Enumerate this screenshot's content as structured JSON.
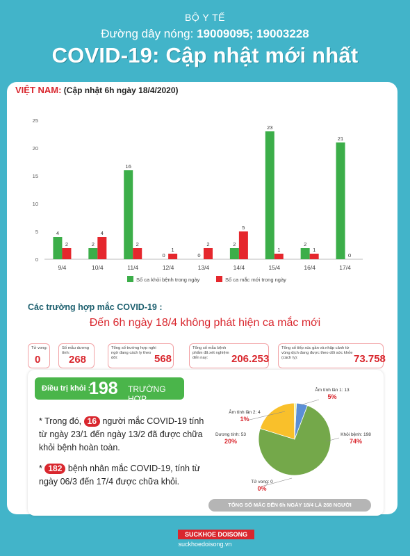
{
  "header": {
    "ministry": "BỘ Y TẾ",
    "hotline_label": "Đường dây nóng: ",
    "hotline_numbers": "19009095; 19003228",
    "title": "COVID-19: Cập nhật mới nhất"
  },
  "vn_header": {
    "country": "VIỆT NAM:",
    "update": "(Cập nhật 6h ngày 18/4/2020)"
  },
  "chart_data": {
    "type": "bar",
    "categories": [
      "9/4",
      "10/4",
      "11/4",
      "12/4",
      "13/4",
      "14/4",
      "15/4",
      "16/4",
      "17/4"
    ],
    "series": [
      {
        "name": "Số ca khỏi bệnh trong ngày",
        "color": "#3cae49",
        "values": [
          4,
          2,
          16,
          0,
          0,
          2,
          23,
          2,
          21
        ]
      },
      {
        "name": "Số ca mắc mới trong ngày",
        "color": "#e5272d",
        "values": [
          2,
          4,
          2,
          1,
          2,
          5,
          1,
          1,
          0
        ]
      }
    ],
    "yticks": [
      0,
      5,
      10,
      15,
      20,
      25
    ],
    "ylim": [
      0,
      25
    ],
    "legend": "bottom"
  },
  "cases": {
    "title": "Các trường hợp mắc COVID-19 :",
    "subtitle": "Đến 6h ngày 18/4 không phát hiện ca mắc mới"
  },
  "stats": [
    {
      "label": "Tử vong:",
      "value": "0"
    },
    {
      "label": "Số mẫu dương tính:",
      "value": "268"
    },
    {
      "label": "Tổng số trường hợp nghi ngờ đang cách ly theo dõi:",
      "value": "568"
    },
    {
      "label": "Tổng số mẫu bệnh phẩm đã xét nghiệm đến nay:",
      "value": "206.253"
    },
    {
      "label": "Tổng số tiếp xúc gần và nhập cảnh từ vùng dịch đang được theo dõi sức khỏe (cách ly):",
      "value": "73.758"
    }
  ],
  "treatment": {
    "label": "Điều trị khỏi :",
    "count": "198",
    "unit": "TRƯỜNG HỢP",
    "p1_prefix": "* Trong đó,",
    "p1_num": "16",
    "p1_text": "người mắc COVID-19 tính từ ngày 23/1 đến ngày 13/2 đã được chữa khỏi bệnh hoàn toàn.",
    "p2_prefix": "*",
    "p2_num": "182",
    "p2_text": "bệnh nhân mắc COVID-19, tính từ ngày 06/3 đến 17/4 được chữa khỏi."
  },
  "pie": {
    "slices": [
      {
        "label": "Khỏi bệnh: 198",
        "pct": "74%",
        "value": 74,
        "color": "#74a84a"
      },
      {
        "label": "Tử vong: 0",
        "pct": "0%",
        "value": 0,
        "color": "#c9c9c9"
      },
      {
        "label": "Dương tính: 53",
        "pct": "20%",
        "value": 20,
        "color": "#f9c02b"
      },
      {
        "label": "Âm tính lần 2: 4",
        "pct": "1%",
        "value": 1,
        "color": "#eef4a0"
      },
      {
        "label": "Âm tính lần 1: 13",
        "pct": "5%",
        "value": 5,
        "color": "#5b8fd6"
      }
    ],
    "total_caption": "TỔNG SỐ MẮC ĐẾN 6h NGÀY 18/4 LÀ 268 NGƯỜI"
  },
  "footer": {
    "logo": "SUCKHOE DOISONG",
    "site": "suckhoedoisong.vn"
  }
}
